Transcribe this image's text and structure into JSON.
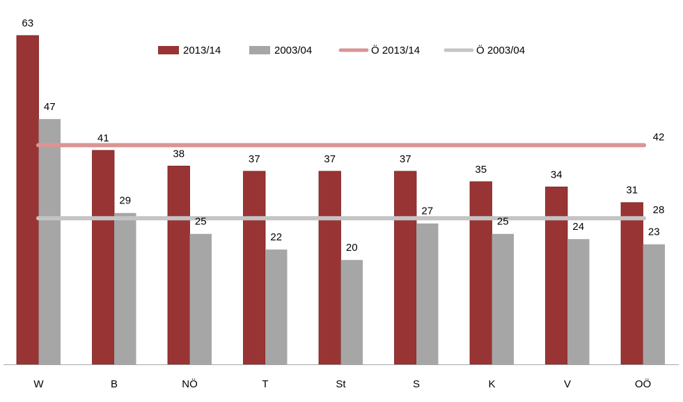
{
  "chart_data": {
    "type": "bar",
    "categories": [
      "W",
      "B",
      "NÖ",
      "T",
      "St",
      "S",
      "K",
      "V",
      "OÖ"
    ],
    "series": [
      {
        "name": "2013/14",
        "values": [
          63,
          41,
          38,
          37,
          37,
          37,
          35,
          34,
          31
        ],
        "color": "#983534",
        "label_values": [
          "63",
          "41",
          "38",
          "37",
          "37",
          "37",
          "35",
          "34",
          "31"
        ]
      },
      {
        "name": "2003/04",
        "values": [
          47,
          29,
          25,
          22,
          20,
          27,
          25,
          24,
          23
        ],
        "color": "#a6a6a6",
        "label_values": [
          "47",
          "29",
          "25",
          "22",
          "20",
          "27",
          "25",
          "24",
          "23"
        ]
      }
    ],
    "reference_lines": [
      {
        "name": "Ö 2013/14",
        "value": 42,
        "label": "42",
        "color": "#d99594"
      },
      {
        "name": "Ö 2003/04",
        "value": 28,
        "label": "28",
        "color": "#c4c4c4"
      }
    ],
    "ylim": [
      0,
      70
    ],
    "legend_position": "top-center",
    "grid": false
  }
}
